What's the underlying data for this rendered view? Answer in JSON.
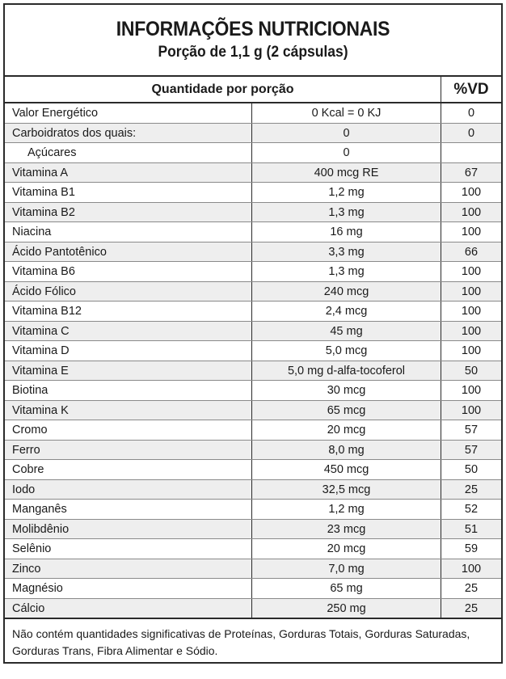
{
  "header": {
    "title": "INFORMAÇÕES NUTRICIONAIS",
    "serving": "Porção de 1,1 g (2 cápsulas)"
  },
  "columns": {
    "quantity": "Quantidade por porção",
    "vd": "%VD"
  },
  "rows": [
    {
      "name": "Valor Energético",
      "amount": "0 Kcal = 0 KJ",
      "vd": "0"
    },
    {
      "name": "Carboidratos dos quais:",
      "amount": "0",
      "vd": "0"
    },
    {
      "name": "Açúcares",
      "amount": "0",
      "vd": "",
      "indent": true
    },
    {
      "name": "Vitamina A",
      "amount": "400 mcg RE",
      "vd": "67"
    },
    {
      "name": "Vitamina B1",
      "amount": "1,2 mg",
      "vd": "100"
    },
    {
      "name": "Vitamina B2",
      "amount": "1,3 mg",
      "vd": "100"
    },
    {
      "name": "Niacina",
      "amount": "16 mg",
      "vd": "100"
    },
    {
      "name": "Ácido Pantotênico",
      "amount": "3,3 mg",
      "vd": "66"
    },
    {
      "name": "Vitamina B6",
      "amount": "1,3 mg",
      "vd": "100"
    },
    {
      "name": "Ácido Fólico",
      "amount": "240 mcg",
      "vd": "100"
    },
    {
      "name": "Vitamina B12",
      "amount": "2,4 mcg",
      "vd": "100"
    },
    {
      "name": "Vitamina C",
      "amount": "45 mg",
      "vd": "100"
    },
    {
      "name": "Vitamina D",
      "amount": "5,0 mcg",
      "vd": "100"
    },
    {
      "name": "Vitamina E",
      "amount": "5,0 mg d-alfa-tocoferol",
      "vd": "50"
    },
    {
      "name": "Biotina",
      "amount": "30 mcg",
      "vd": "100"
    },
    {
      "name": "Vitamina K",
      "amount": "65 mcg",
      "vd": "100"
    },
    {
      "name": "Cromo",
      "amount": "20 mcg",
      "vd": "57"
    },
    {
      "name": "Ferro",
      "amount": "8,0 mg",
      "vd": "57"
    },
    {
      "name": "Cobre",
      "amount": "450 mcg",
      "vd": "50"
    },
    {
      "name": "Iodo",
      "amount": "32,5 mcg",
      "vd": "25"
    },
    {
      "name": "Manganês",
      "amount": "1,2 mg",
      "vd": "52"
    },
    {
      "name": "Molibdênio",
      "amount": "23 mcg",
      "vd": "51"
    },
    {
      "name": "Selênio",
      "amount": "20 mcg",
      "vd": "59"
    },
    {
      "name": "Zinco",
      "amount": "7,0 mg",
      "vd": "100"
    },
    {
      "name": "Magnésio",
      "amount": "65 mg",
      "vd": "25"
    },
    {
      "name": "Cálcio",
      "amount": "250 mg",
      "vd": "25"
    }
  ],
  "footer": {
    "note": "Não contém quantidades significativas de Proteínas, Gorduras Totais, Gorduras Saturadas, Gorduras Trans, Fibra Alimentar e Sódio."
  }
}
